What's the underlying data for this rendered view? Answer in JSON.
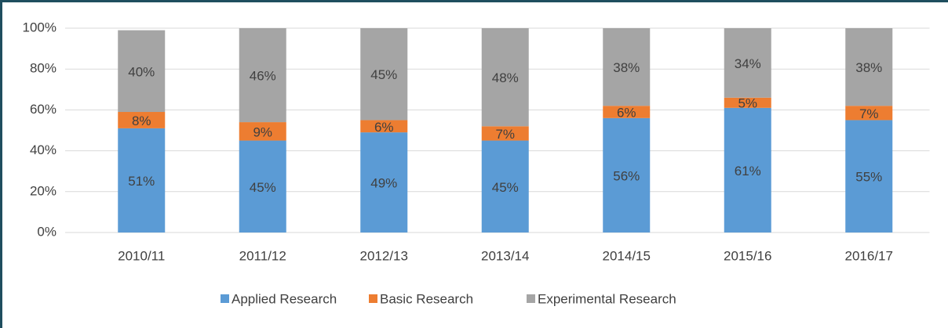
{
  "chart_data": {
    "type": "stacked_bar",
    "categories": [
      "2010/11",
      "2011/12",
      "2012/13",
      "2013/14",
      "2014/15",
      "2015/16",
      "2016/17"
    ],
    "series": [
      {
        "name": "Applied Research",
        "color": "#5b9bd5",
        "values": [
          51,
          45,
          49,
          45,
          56,
          61,
          55
        ],
        "value_labels": [
          "51%",
          "45%",
          "49%",
          "45%",
          "56%",
          "61%",
          "55%"
        ]
      },
      {
        "name": "Basic Research",
        "color": "#ed7d31",
        "values": [
          8,
          9,
          6,
          7,
          6,
          5,
          7
        ],
        "value_labels": [
          "8%",
          "9%",
          "6%",
          "7%",
          "6%",
          "5%",
          "7%"
        ]
      },
      {
        "name": "Experimental Research",
        "color": "#a5a5a5",
        "values": [
          40,
          46,
          45,
          48,
          38,
          34,
          38
        ],
        "value_labels": [
          "40%",
          "46%",
          "45%",
          "48%",
          "38%",
          "34%",
          "38%"
        ]
      }
    ],
    "ylim": [
      0,
      100
    ],
    "yticks": [
      {
        "value": 0,
        "label": "0%"
      },
      {
        "value": 20,
        "label": "20%"
      },
      {
        "value": 40,
        "label": "40%"
      },
      {
        "value": 60,
        "label": "60%"
      },
      {
        "value": 80,
        "label": "80%"
      },
      {
        "value": 100,
        "label": "100%"
      }
    ],
    "grid": true,
    "legend": "bottom"
  }
}
